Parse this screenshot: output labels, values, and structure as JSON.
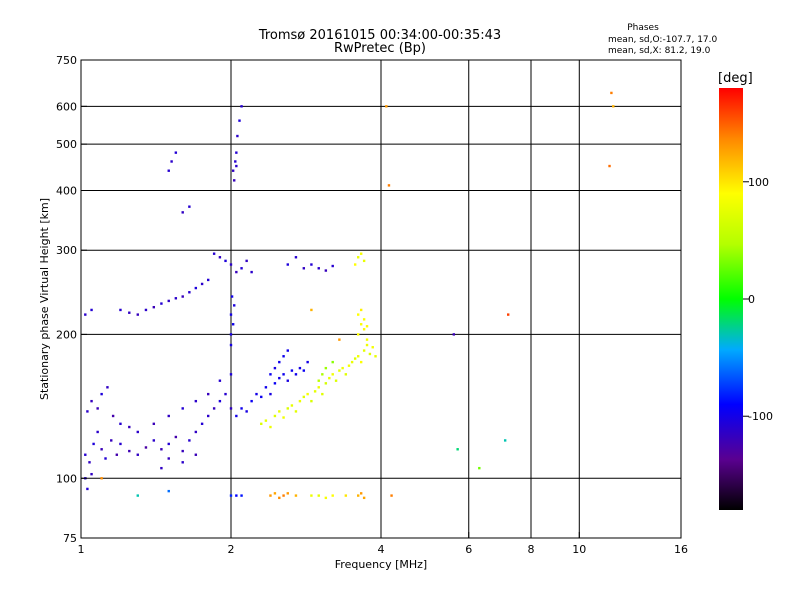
{
  "header": {
    "title": "Tromsø 20161015 00:34:00-00:35:43",
    "subtitle": "RwPretec (Bp)"
  },
  "phase_info": {
    "title": "Phases",
    "line_o": "mean, sd,O:-107.7, 17.0",
    "line_x": "mean, sd,X:  81.2, 19.0"
  },
  "colorbar": {
    "unit": "[deg]",
    "range": [
      -180,
      180
    ],
    "ticks": [
      {
        "value": 100,
        "label": "100"
      },
      {
        "value": 0,
        "label": "0"
      },
      {
        "value": -100,
        "label": "-100"
      }
    ]
  },
  "chart_data": {
    "type": "scatter",
    "title": "Tromsø 20161015 00:34:00-00:35:43",
    "subtitle": "RwPretec (Bp)",
    "xlabel": "Frequency [MHz]",
    "ylabel": "Stationary phase Virtual Height [km]",
    "xscale": "log",
    "yscale": "log",
    "xlim": [
      1,
      16
    ],
    "ylim": [
      75,
      750
    ],
    "xticks": [
      {
        "value": 1,
        "label": "1"
      },
      {
        "value": 2,
        "label": "2"
      },
      {
        "value": 4,
        "label": "4"
      },
      {
        "value": 6,
        "label": "6"
      },
      {
        "value": 8,
        "label": "8"
      },
      {
        "value": 10,
        "label": "10"
      },
      {
        "value": 16,
        "label": "16"
      }
    ],
    "yticks": [
      {
        "value": 75,
        "label": "75"
      },
      {
        "value": 100,
        "label": "100"
      },
      {
        "value": 200,
        "label": "200"
      },
      {
        "value": 300,
        "label": "300"
      },
      {
        "value": 400,
        "label": "400"
      },
      {
        "value": 500,
        "label": "500"
      },
      {
        "value": 600,
        "label": "600"
      },
      {
        "value": 750,
        "label": "750"
      }
    ],
    "gridlines_x": [
      2,
      4,
      6,
      8,
      10
    ],
    "gridlines_y": [
      100,
      200,
      300,
      400,
      500,
      600
    ],
    "grid": true,
    "color_scale": "phase in degrees, -180 (black) to 180 (red)",
    "series": [
      {
        "points": [
          [
            1.02,
            112,
            -110
          ],
          [
            1.04,
            108,
            -115
          ],
          [
            1.06,
            118,
            -105
          ],
          [
            1.08,
            125,
            -112
          ],
          [
            1.1,
            115,
            -120
          ],
          [
            1.12,
            110,
            -108
          ],
          [
            1.15,
            120,
            -118
          ],
          [
            1.18,
            112,
            -125
          ],
          [
            1.2,
            118,
            -110
          ],
          [
            1.25,
            114,
            -122
          ],
          [
            1.3,
            112,
            -115
          ],
          [
            1.35,
            116,
            -128
          ],
          [
            1.4,
            120,
            -112
          ],
          [
            1.45,
            115,
            -120
          ],
          [
            1.5,
            118,
            -108
          ],
          [
            1.55,
            122,
            -125
          ],
          [
            1.6,
            114,
            -118
          ],
          [
            1.65,
            120,
            -110
          ],
          [
            1.7,
            125,
            -115
          ],
          [
            1.75,
            130,
            -108
          ],
          [
            1.8,
            135,
            -112
          ],
          [
            1.85,
            140,
            -118
          ],
          [
            1.9,
            145,
            -105
          ],
          [
            1.95,
            150,
            -110
          ],
          [
            2.0,
            140,
            -115
          ],
          [
            1.03,
            138,
            -112
          ],
          [
            1.05,
            145,
            -118
          ],
          [
            1.08,
            140,
            -120
          ],
          [
            1.1,
            150,
            -105
          ],
          [
            1.13,
            155,
            -115
          ],
          [
            1.16,
            135,
            -125
          ],
          [
            1.2,
            130,
            -110
          ],
          [
            1.25,
            128,
            -118
          ],
          [
            1.3,
            125,
            -112
          ],
          [
            1.4,
            130,
            -120
          ],
          [
            1.5,
            135,
            -115
          ],
          [
            1.6,
            140,
            -108
          ],
          [
            1.7,
            145,
            -112
          ],
          [
            1.8,
            150,
            -118
          ],
          [
            1.9,
            160,
            -110
          ],
          [
            2.0,
            165,
            -105
          ],
          [
            1.02,
            100,
            -110
          ],
          [
            1.05,
            102,
            -115
          ],
          [
            1.03,
            95,
            -108
          ],
          [
            1.5,
            110,
            -118
          ],
          [
            1.6,
            108,
            -112
          ],
          [
            1.7,
            112,
            -120
          ],
          [
            1.45,
            105,
            -115
          ]
        ]
      },
      {
        "points": [
          [
            2.05,
            135,
            -100
          ],
          [
            2.1,
            140,
            -98
          ],
          [
            2.15,
            138,
            -102
          ],
          [
            2.2,
            145,
            -95
          ],
          [
            2.25,
            150,
            -100
          ],
          [
            2.3,
            148,
            -96
          ],
          [
            2.35,
            155,
            -98
          ],
          [
            2.4,
            150,
            -102
          ],
          [
            2.45,
            158,
            -95
          ],
          [
            2.5,
            162,
            -100
          ],
          [
            2.55,
            165,
            -97
          ],
          [
            2.6,
            160,
            -103
          ],
          [
            2.65,
            168,
            -96
          ],
          [
            2.7,
            165,
            -99
          ],
          [
            2.75,
            170,
            -101
          ],
          [
            2.8,
            168,
            -95
          ],
          [
            2.85,
            175,
            -100
          ],
          [
            2.5,
            175,
            -98
          ],
          [
            2.55,
            180,
            -97
          ],
          [
            2.6,
            185,
            -99
          ],
          [
            2.45,
            170,
            -102
          ],
          [
            2.4,
            165,
            -96
          ],
          [
            2.0,
            200,
            -102
          ],
          [
            2.02,
            210,
            -98
          ],
          [
            2.0,
            220,
            -100
          ],
          [
            2.03,
            230,
            -104
          ],
          [
            2.01,
            240,
            -99
          ],
          [
            2.0,
            190,
            -101
          ]
        ]
      },
      {
        "points": [
          [
            2.3,
            130,
            70
          ],
          [
            2.35,
            132,
            75
          ],
          [
            2.4,
            128,
            80
          ],
          [
            2.45,
            135,
            72
          ],
          [
            2.5,
            138,
            78
          ],
          [
            2.55,
            134,
            82
          ],
          [
            2.6,
            140,
            70
          ],
          [
            2.65,
            142,
            76
          ],
          [
            2.7,
            138,
            74
          ],
          [
            2.75,
            145,
            79
          ],
          [
            2.8,
            148,
            72
          ],
          [
            2.85,
            150,
            85
          ],
          [
            2.9,
            145,
            68
          ],
          [
            2.95,
            152,
            75
          ],
          [
            3.0,
            155,
            80
          ],
          [
            3.05,
            150,
            72
          ],
          [
            3.1,
            158,
            65
          ],
          [
            3.15,
            162,
            78
          ],
          [
            3.2,
            165,
            82
          ],
          [
            3.25,
            160,
            70
          ],
          [
            3.3,
            168,
            75
          ],
          [
            3.35,
            170,
            80
          ],
          [
            3.4,
            165,
            72
          ],
          [
            3.45,
            172,
            85
          ],
          [
            3.5,
            175,
            78
          ],
          [
            3.55,
            178,
            70
          ],
          [
            3.6,
            180,
            82
          ],
          [
            3.65,
            175,
            88
          ],
          [
            3.7,
            185,
            75
          ],
          [
            3.75,
            190,
            80
          ],
          [
            3.8,
            182,
            72
          ],
          [
            3.85,
            188,
            85
          ],
          [
            3.9,
            180,
            78
          ],
          [
            3.6,
            200,
            90
          ],
          [
            3.65,
            210,
            88
          ],
          [
            3.7,
            205,
            92
          ],
          [
            3.75,
            195,
            85
          ],
          [
            3.6,
            220,
            90
          ],
          [
            3.65,
            225,
            95
          ],
          [
            3.7,
            215,
            87
          ],
          [
            3.75,
            208,
            91
          ],
          [
            3.05,
            165,
            45
          ],
          [
            3.1,
            170,
            40
          ],
          [
            3.0,
            160,
            50
          ],
          [
            3.2,
            175,
            35
          ]
        ]
      },
      {
        "points": [
          [
            1.2,
            225,
            -110
          ],
          [
            1.25,
            222,
            -115
          ],
          [
            1.3,
            220,
            -118
          ],
          [
            1.35,
            225,
            -112
          ],
          [
            1.4,
            228,
            -120
          ],
          [
            1.45,
            232,
            -108
          ],
          [
            1.5,
            235,
            -115
          ],
          [
            1.55,
            238,
            -112
          ],
          [
            1.6,
            240,
            -118
          ],
          [
            1.65,
            245,
            -110
          ],
          [
            1.7,
            250,
            -105
          ],
          [
            1.75,
            255,
            -112
          ],
          [
            1.8,
            260,
            -108
          ],
          [
            1.85,
            295,
            -110
          ],
          [
            1.9,
            290,
            -115
          ],
          [
            1.95,
            285,
            -105
          ],
          [
            2.0,
            280,
            -112
          ],
          [
            2.05,
            270,
            -118
          ],
          [
            2.1,
            275,
            -108
          ],
          [
            2.15,
            285,
            -115
          ],
          [
            2.2,
            270,
            -112
          ],
          [
            2.6,
            280,
            -105
          ],
          [
            2.7,
            290,
            -110
          ],
          [
            2.8,
            275,
            -115
          ],
          [
            2.9,
            280,
            -108
          ],
          [
            3.0,
            275,
            -112
          ],
          [
            3.1,
            272,
            -118
          ],
          [
            3.2,
            278,
            -110
          ],
          [
            1.02,
            220,
            -112
          ],
          [
            1.05,
            225,
            -108
          ]
        ]
      },
      {
        "points": [
          [
            2.02,
            440,
            -115
          ],
          [
            2.04,
            460,
            -110
          ],
          [
            2.05,
            480,
            -108
          ],
          [
            2.06,
            520,
            -112
          ],
          [
            2.08,
            560,
            -105
          ],
          [
            2.1,
            600,
            -110
          ],
          [
            2.03,
            420,
            -118
          ],
          [
            2.05,
            450,
            -112
          ],
          [
            1.5,
            440,
            -110
          ],
          [
            1.52,
            460,
            -112
          ],
          [
            1.55,
            480,
            -108
          ],
          [
            1.6,
            360,
            -115
          ],
          [
            1.65,
            370,
            -110
          ]
        ]
      },
      {
        "points": [
          [
            2.0,
            92,
            -80
          ],
          [
            2.05,
            92,
            -90
          ],
          [
            2.1,
            92,
            -85
          ],
          [
            2.4,
            92,
            130
          ],
          [
            2.45,
            93,
            125
          ],
          [
            2.5,
            91,
            135
          ],
          [
            2.55,
            92,
            140
          ],
          [
            2.6,
            93,
            130
          ],
          [
            2.7,
            92,
            120
          ],
          [
            2.9,
            92,
            80
          ],
          [
            3.0,
            92,
            75
          ],
          [
            3.1,
            91,
            85
          ],
          [
            3.2,
            92,
            90
          ],
          [
            3.6,
            92,
            120
          ],
          [
            3.65,
            93,
            130
          ],
          [
            3.7,
            91,
            125
          ],
          [
            3.4,
            92,
            100
          ],
          [
            4.2,
            92,
            140
          ],
          [
            1.3,
            92,
            -30
          ],
          [
            1.5,
            94,
            -60
          ],
          [
            1.1,
            100,
            135
          ]
        ]
      },
      {
        "points": [
          [
            3.6,
            290,
            80
          ],
          [
            3.65,
            295,
            85
          ],
          [
            3.7,
            285,
            78
          ],
          [
            3.55,
            280,
            90
          ],
          [
            4.1,
            600,
            130
          ],
          [
            4.15,
            410,
            140
          ],
          [
            5.6,
            200,
            -120
          ],
          [
            5.7,
            115,
            -20
          ],
          [
            6.3,
            105,
            30
          ],
          [
            7.1,
            120,
            -30
          ],
          [
            7.2,
            220,
            160
          ],
          [
            11.6,
            640,
            140
          ],
          [
            11.7,
            600,
            120
          ],
          [
            11.5,
            450,
            145
          ],
          [
            3.3,
            195,
            130
          ],
          [
            2.9,
            225,
            120
          ]
        ]
      }
    ]
  }
}
